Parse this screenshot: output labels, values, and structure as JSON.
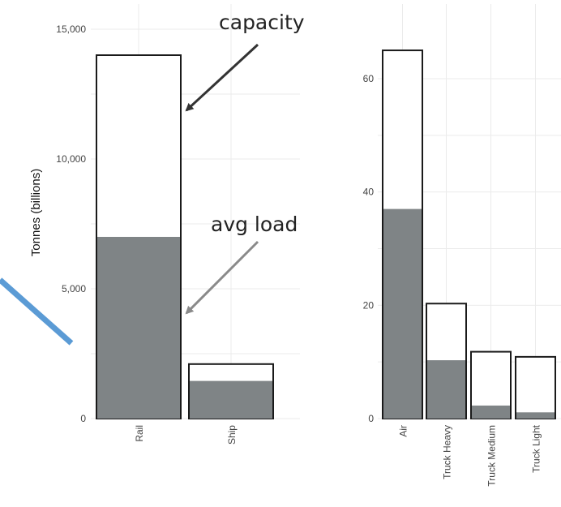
{
  "chart_data": [
    {
      "type": "bar",
      "categories": [
        "Rail",
        "Ship"
      ],
      "series": [
        {
          "name": "capacity",
          "values": [
            14000,
            2100
          ]
        },
        {
          "name": "avg load",
          "values": [
            7000,
            1450
          ]
        }
      ],
      "ylabel": "Tonnes (billions)",
      "ylim": [
        0,
        15000
      ],
      "yticks": [
        "0",
        "5,000",
        "10,000",
        "15,000"
      ],
      "ytick_values": [
        0,
        5000,
        10000,
        15000
      ],
      "grid": true
    },
    {
      "type": "bar",
      "categories": [
        "Air",
        "Truck Heavy",
        "Truck Medium",
        "Truck Light"
      ],
      "series": [
        {
          "name": "capacity",
          "values": [
            65,
            20.3,
            11.8,
            10.9
          ]
        },
        {
          "name": "avg load",
          "values": [
            37,
            10.3,
            2.3,
            1.1
          ]
        }
      ],
      "ylim": [
        0,
        70
      ],
      "yticks": [
        "0",
        "20",
        "40",
        "60"
      ],
      "ytick_values": [
        0,
        20,
        40,
        60
      ],
      "grid": true
    }
  ],
  "annotations": {
    "capacity": "capacity",
    "avg_load": "avg load"
  },
  "colors": {
    "capacity_fill": "#ffffff",
    "load_fill": "#7f8486",
    "bar_stroke": "#1a1a1a",
    "grid": "#ebebeb",
    "arrow_capacity": "#333333",
    "arrow_load": "#8a8a8a",
    "accent_line": "#5b9bd5"
  }
}
